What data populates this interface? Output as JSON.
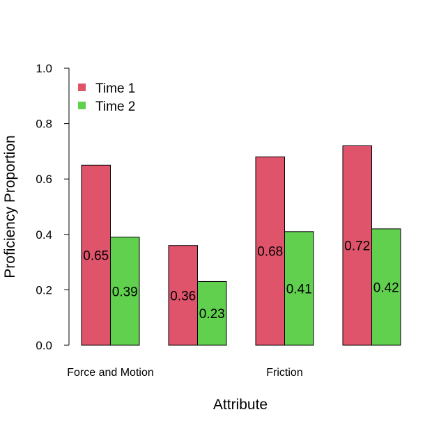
{
  "chart_data": {
    "type": "bar",
    "title": "",
    "xlabel": "Attribute",
    "ylabel": "Proficiency Proportion",
    "ylim": [
      0,
      1
    ],
    "yticks": [
      "0.0",
      "0.2",
      "0.4",
      "0.6",
      "0.8",
      "1.0"
    ],
    "categories": [
      "Force and Motion",
      "",
      "Friction",
      ""
    ],
    "series": [
      {
        "name": "Time 1",
        "color": "#df536b",
        "values": [
          0.65,
          0.36,
          0.68,
          0.72
        ],
        "labels": [
          "0.65",
          "0.36",
          "0.68",
          "0.72"
        ]
      },
      {
        "name": "Time 2",
        "color": "#61d04f",
        "values": [
          0.39,
          0.23,
          0.41,
          0.42
        ],
        "labels": [
          "0.39",
          "0.23",
          "0.41",
          "0.42"
        ]
      }
    ],
    "grid": false,
    "legend_position": "top-left"
  }
}
